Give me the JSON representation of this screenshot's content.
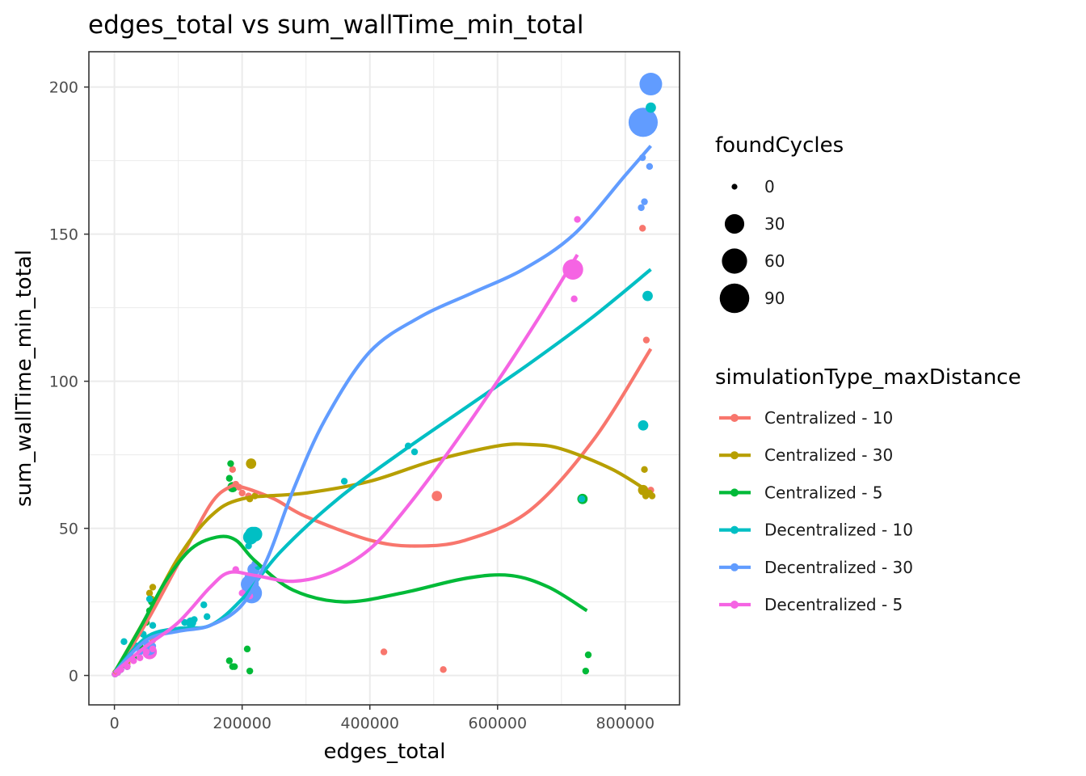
{
  "chart_data": {
    "type": "scatter",
    "title": "edges_total  vs  sum_wallTime_min_total",
    "xlabel": "edges_total",
    "ylabel": "sum_wallTime_min_total",
    "xlim": [
      -40000,
      885000
    ],
    "ylim": [
      -10,
      212
    ],
    "xticks": [
      0,
      200000,
      400000,
      600000,
      800000
    ],
    "xtick_labels": [
      "0",
      "200000",
      "400000",
      "600000",
      "800000"
    ],
    "yticks": [
      0,
      50,
      100,
      150,
      200
    ],
    "ytick_labels": [
      "0",
      "50",
      "100",
      "150",
      "200"
    ],
    "grid": true,
    "size_legend": {
      "title": "foundCycles",
      "entries": [
        {
          "label": "0",
          "value": 0
        },
        {
          "label": "30",
          "value": 30
        },
        {
          "label": "60",
          "value": 60
        },
        {
          "label": "90",
          "value": 90
        }
      ]
    },
    "color_legend_title": "simulationType_maxDistance",
    "series": [
      {
        "name": "Centralized - 10",
        "color": "#F8766D",
        "points": [
          [
            1000,
            0.5,
            0
          ],
          [
            5000,
            1,
            0
          ],
          [
            10000,
            2,
            0
          ],
          [
            20000,
            4,
            0
          ],
          [
            30000,
            6,
            0
          ],
          [
            45000,
            9,
            0
          ],
          [
            60000,
            12,
            0
          ],
          [
            185000,
            70,
            0
          ],
          [
            190000,
            65,
            0
          ],
          [
            195000,
            64,
            0
          ],
          [
            200000,
            62,
            0
          ],
          [
            210000,
            61,
            0
          ],
          [
            422000,
            8,
            0
          ],
          [
            505000,
            61,
            2
          ],
          [
            515000,
            2,
            0
          ],
          [
            827000,
            152,
            0
          ],
          [
            833000,
            114,
            0
          ],
          [
            840000,
            63,
            0
          ]
        ],
        "curve": [
          [
            0,
            0.5
          ],
          [
            50000,
            18
          ],
          [
            100000,
            38
          ],
          [
            150000,
            58
          ],
          [
            180000,
            64
          ],
          [
            200000,
            64
          ],
          [
            250000,
            60
          ],
          [
            300000,
            54
          ],
          [
            400000,
            46
          ],
          [
            470000,
            44
          ],
          [
            550000,
            46
          ],
          [
            650000,
            56
          ],
          [
            750000,
            80
          ],
          [
            840000,
            111
          ]
        ]
      },
      {
        "name": "Centralized - 30",
        "color": "#B79F00",
        "points": [
          [
            2000,
            1,
            0
          ],
          [
            10000,
            3,
            0
          ],
          [
            20000,
            5,
            0
          ],
          [
            40000,
            10,
            0
          ],
          [
            55000,
            28,
            0
          ],
          [
            60000,
            30,
            0
          ],
          [
            58000,
            26,
            0
          ],
          [
            212000,
            60,
            0
          ],
          [
            214000,
            72,
            2
          ],
          [
            220000,
            61,
            0
          ],
          [
            828000,
            63,
            2
          ],
          [
            830000,
            70,
            0
          ],
          [
            832000,
            61,
            0
          ],
          [
            838000,
            62,
            0
          ],
          [
            842000,
            61,
            0
          ]
        ],
        "curve": [
          [
            0,
            1
          ],
          [
            50000,
            20
          ],
          [
            100000,
            40
          ],
          [
            150000,
            54
          ],
          [
            200000,
            60
          ],
          [
            300000,
            62
          ],
          [
            400000,
            66
          ],
          [
            500000,
            73
          ],
          [
            600000,
            78
          ],
          [
            650000,
            78.5
          ],
          [
            700000,
            77
          ],
          [
            780000,
            70
          ],
          [
            840000,
            62
          ]
        ]
      },
      {
        "name": "Centralized - 5",
        "color": "#00BA38",
        "points": [
          [
            1000,
            0.5,
            0
          ],
          [
            5000,
            1,
            0
          ],
          [
            10000,
            2,
            0
          ],
          [
            20000,
            3,
            0
          ],
          [
            30000,
            6,
            0
          ],
          [
            40000,
            10,
            0
          ],
          [
            45000,
            14,
            0
          ],
          [
            50000,
            18,
            0
          ],
          [
            55000,
            22,
            0
          ],
          [
            58000,
            25,
            0
          ],
          [
            180000,
            67,
            0
          ],
          [
            182000,
            72,
            0
          ],
          [
            185000,
            64,
            2
          ],
          [
            180000,
            5,
            0
          ],
          [
            185000,
            3,
            0
          ],
          [
            188000,
            3,
            0
          ],
          [
            208000,
            9,
            0
          ],
          [
            212000,
            1.5,
            0
          ],
          [
            733000,
            60,
            2
          ],
          [
            738000,
            1.5,
            0
          ],
          [
            742000,
            7,
            0
          ]
        ],
        "curve": [
          [
            0,
            1
          ],
          [
            40000,
            16
          ],
          [
            80000,
            32
          ],
          [
            120000,
            43
          ],
          [
            160000,
            47
          ],
          [
            190000,
            46
          ],
          [
            220000,
            39
          ],
          [
            280000,
            29
          ],
          [
            360000,
            25
          ],
          [
            450000,
            28
          ],
          [
            550000,
            33
          ],
          [
            620000,
            34
          ],
          [
            680000,
            30
          ],
          [
            740000,
            22
          ]
        ]
      },
      {
        "name": "Decentralized - 10",
        "color": "#00BFC4",
        "points": [
          [
            1000,
            0.5,
            0
          ],
          [
            5000,
            1,
            0
          ],
          [
            10000,
            2,
            0
          ],
          [
            15000,
            11.5,
            0
          ],
          [
            20000,
            3,
            0
          ],
          [
            35000,
            10,
            0
          ],
          [
            45000,
            14,
            0
          ],
          [
            55000,
            26,
            0
          ],
          [
            60000,
            17,
            0
          ],
          [
            110000,
            18,
            0
          ],
          [
            120000,
            18,
            2
          ],
          [
            125000,
            19,
            0
          ],
          [
            140000,
            24,
            0
          ],
          [
            145000,
            20,
            0
          ],
          [
            210000,
            44,
            0
          ],
          [
            213000,
            47,
            10
          ],
          [
            216000,
            48,
            10
          ],
          [
            220000,
            48,
            10
          ],
          [
            225000,
            37,
            0
          ],
          [
            360000,
            66,
            0
          ],
          [
            460000,
            78,
            0
          ],
          [
            470000,
            76,
            0
          ],
          [
            732000,
            60,
            0
          ],
          [
            828000,
            85,
            2
          ],
          [
            835000,
            129,
            2
          ],
          [
            840000,
            193,
            2
          ]
        ],
        "curve": [
          [
            0,
            1
          ],
          [
            50000,
            13
          ],
          [
            100000,
            16
          ],
          [
            150000,
            17
          ],
          [
            200000,
            26
          ],
          [
            260000,
            42
          ],
          [
            350000,
            60
          ],
          [
            450000,
            76
          ],
          [
            550000,
            91
          ],
          [
            650000,
            106
          ],
          [
            750000,
            122
          ],
          [
            840000,
            138
          ]
        ]
      },
      {
        "name": "Decentralized - 30",
        "color": "#619CFF",
        "points": [
          [
            1000,
            0.5,
            0
          ],
          [
            5000,
            1,
            0
          ],
          [
            10000,
            2,
            0
          ],
          [
            20000,
            3,
            0
          ],
          [
            40000,
            8,
            0
          ],
          [
            50000,
            11,
            0
          ],
          [
            55000,
            9,
            5
          ],
          [
            60000,
            10,
            0
          ],
          [
            210000,
            28,
            5
          ],
          [
            212000,
            31,
            20
          ],
          [
            215000,
            33,
            10
          ],
          [
            218000,
            36,
            5
          ],
          [
            220000,
            38,
            0
          ],
          [
            215000,
            28,
            30
          ],
          [
            825000,
            159,
            0
          ],
          [
            827000,
            176,
            0
          ],
          [
            830000,
            161,
            0
          ],
          [
            838000,
            173,
            0
          ],
          [
            828000,
            188,
            80
          ],
          [
            840000,
            201,
            40
          ]
        ],
        "curve": [
          [
            0,
            1
          ],
          [
            50000,
            12
          ],
          [
            100000,
            15
          ],
          [
            150000,
            17
          ],
          [
            200000,
            24
          ],
          [
            240000,
            40
          ],
          [
            280000,
            63
          ],
          [
            330000,
            87
          ],
          [
            400000,
            110
          ],
          [
            480000,
            122
          ],
          [
            560000,
            130
          ],
          [
            640000,
            138
          ],
          [
            720000,
            150
          ],
          [
            800000,
            170
          ],
          [
            840000,
            180
          ]
        ]
      },
      {
        "name": "Decentralized - 5",
        "color": "#F564E3",
        "points": [
          [
            1000,
            0.5,
            0
          ],
          [
            5000,
            1,
            0
          ],
          [
            10000,
            2,
            0
          ],
          [
            20000,
            3,
            0
          ],
          [
            30000,
            5,
            0
          ],
          [
            40000,
            6,
            0
          ],
          [
            50000,
            8,
            0
          ],
          [
            55000,
            8,
            10
          ],
          [
            60000,
            9,
            0
          ],
          [
            190000,
            36,
            0
          ],
          [
            200000,
            28,
            0
          ],
          [
            212000,
            27,
            0
          ],
          [
            718000,
            138,
            30
          ],
          [
            720000,
            128,
            0
          ],
          [
            725000,
            155,
            0
          ]
        ],
        "curve": [
          [
            0,
            1
          ],
          [
            50000,
            10
          ],
          [
            100000,
            18
          ],
          [
            150000,
            30
          ],
          [
            180000,
            35
          ],
          [
            220000,
            34
          ],
          [
            280000,
            32
          ],
          [
            340000,
            35
          ],
          [
            400000,
            43
          ],
          [
            450000,
            55
          ],
          [
            520000,
            75
          ],
          [
            600000,
            100
          ],
          [
            660000,
            120
          ],
          [
            725000,
            143
          ]
        ]
      }
    ]
  }
}
